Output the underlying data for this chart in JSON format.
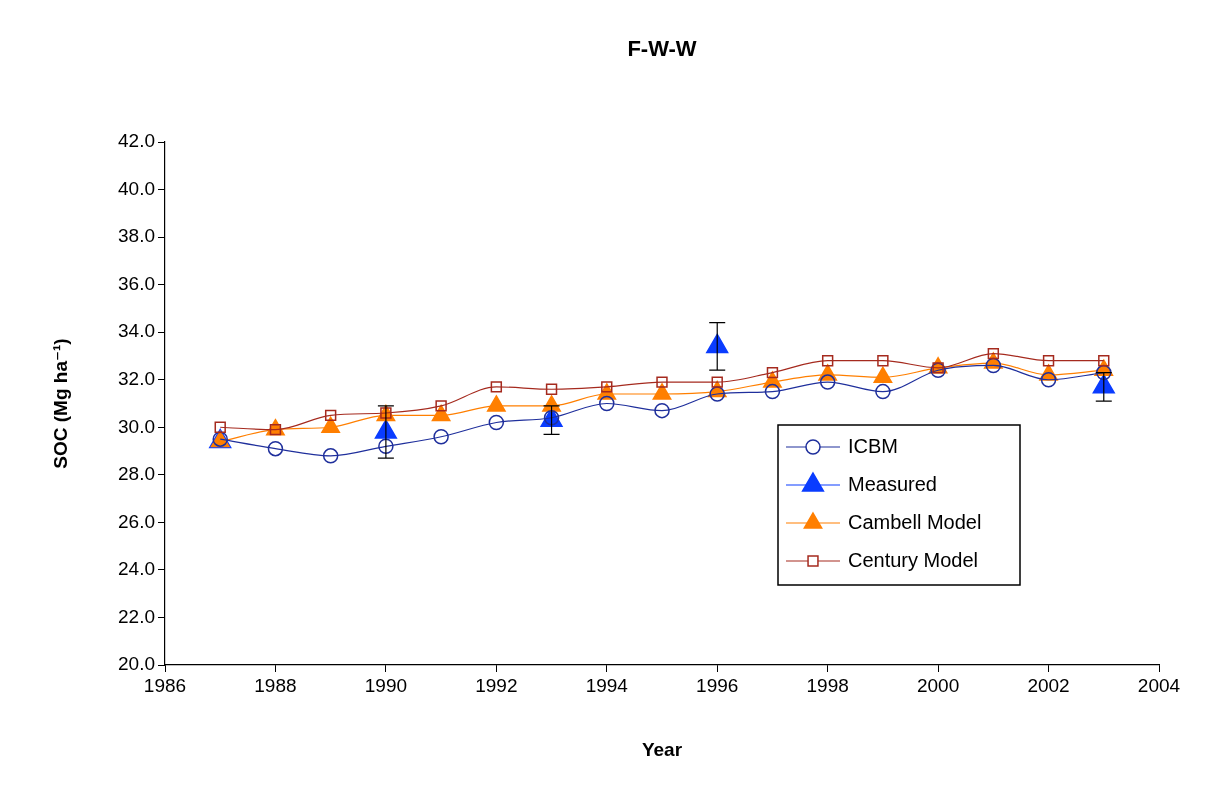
{
  "chart_data": {
    "type": "line",
    "title": "F-W-W",
    "xlabel": "Year",
    "ylabel": "SOC (Mg ha⁻¹)",
    "x": [
      1987,
      1988,
      1989,
      1990,
      1991,
      1992,
      1993,
      1994,
      1995,
      1996,
      1997,
      1998,
      1999,
      2000,
      2001,
      2002,
      2003
    ],
    "xlim": [
      1986,
      2004
    ],
    "xticks": [
      1986,
      1988,
      1990,
      1992,
      1994,
      1996,
      1998,
      2000,
      2002,
      2004
    ],
    "ylim": [
      20,
      42
    ],
    "yticks": [
      {
        "value": 20,
        "label": "20.0"
      },
      {
        "value": 22,
        "label": "22.0"
      },
      {
        "value": 24,
        "label": "24.0"
      },
      {
        "value": 26,
        "label": "26.0"
      },
      {
        "value": 28,
        "label": "28.0"
      },
      {
        "value": 30,
        "label": "30.0"
      },
      {
        "value": 32,
        "label": "32.0"
      },
      {
        "value": 34,
        "label": "34.0"
      },
      {
        "value": 36,
        "label": "36.0"
      },
      {
        "value": 38,
        "label": "38.0"
      },
      {
        "value": 40,
        "label": "40.0"
      },
      {
        "value": 42,
        "label": "42.0"
      }
    ],
    "grid": false,
    "legend": "right",
    "series": [
      {
        "name": "ICBM",
        "color": "#1f2f9c",
        "marker": "circle",
        "values": [
          29.5,
          29.1,
          28.8,
          29.2,
          29.6,
          30.2,
          30.4,
          31.0,
          30.7,
          31.4,
          31.5,
          31.9,
          31.5,
          32.4,
          32.6,
          32.0,
          32.3
        ]
      },
      {
        "name": "Measured",
        "type": "scatter",
        "color": "#0a3cff",
        "marker": "triangle",
        "x": [
          1987,
          1990,
          1993,
          1996,
          2003
        ],
        "values": [
          29.4,
          29.8,
          30.3,
          33.4,
          31.7
        ],
        "errors": [
          null,
          1.1,
          0.6,
          1.0,
          0.6
        ]
      },
      {
        "name": "Cambell Model",
        "color": "#ff7f00",
        "marker": "triangle",
        "values": [
          29.4,
          29.9,
          30.0,
          30.5,
          30.5,
          30.9,
          30.9,
          31.4,
          31.4,
          31.5,
          31.9,
          32.2,
          32.1,
          32.5,
          32.7,
          32.2,
          32.4
        ]
      },
      {
        "name": "Century Model",
        "color": "#a52a1e",
        "marker": "square",
        "values": [
          30.0,
          29.9,
          30.5,
          30.6,
          30.9,
          31.7,
          31.6,
          31.7,
          31.9,
          31.9,
          32.3,
          32.8,
          32.8,
          32.5,
          33.1,
          32.8,
          32.8
        ]
      }
    ]
  }
}
